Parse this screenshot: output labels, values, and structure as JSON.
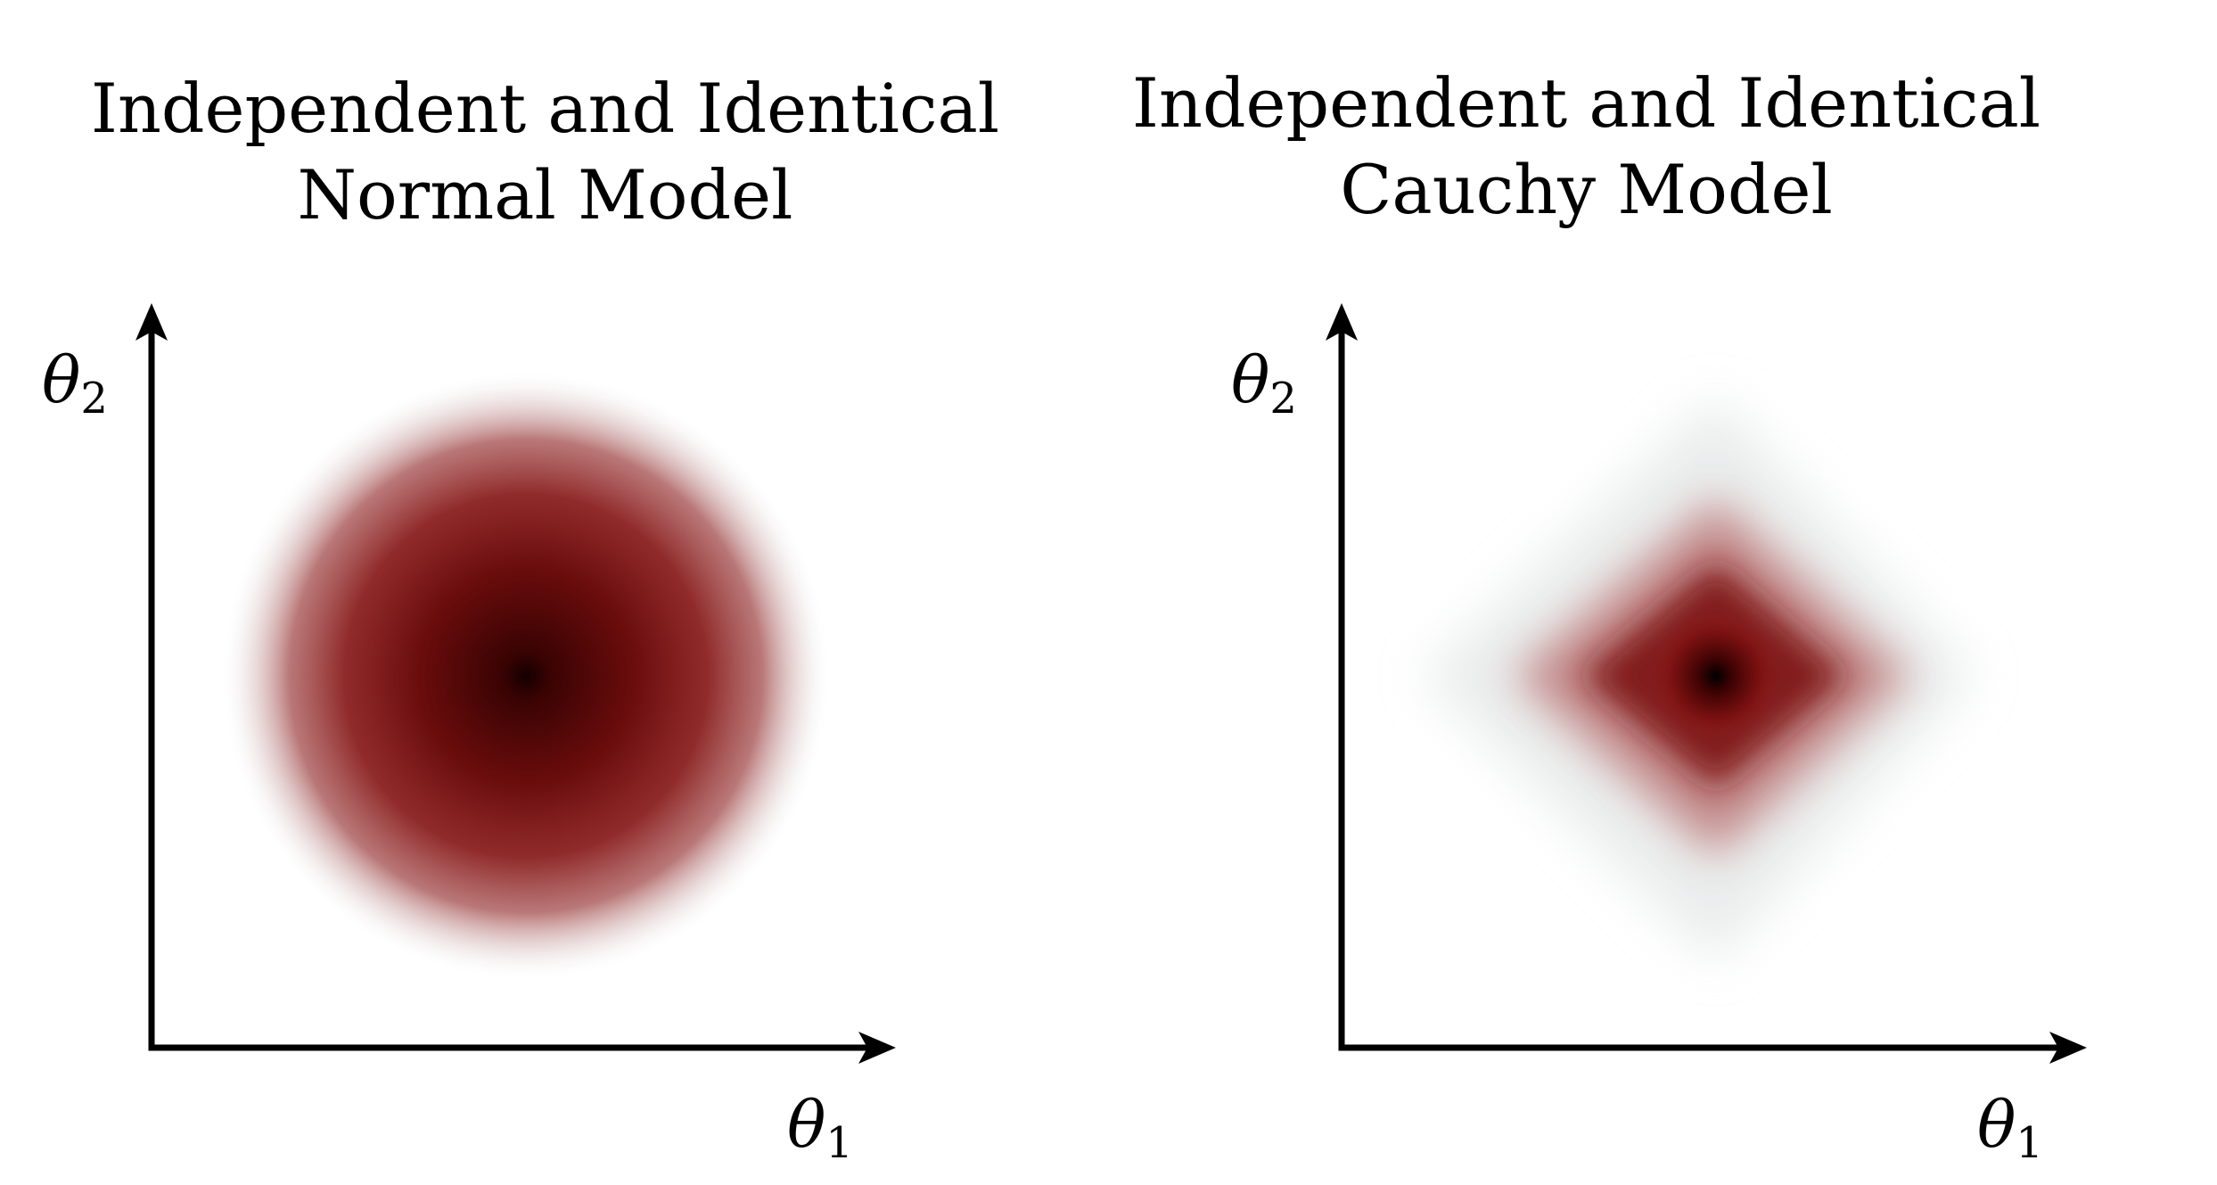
{
  "panels": [
    {
      "id": "normal",
      "title_line1": "Independent and Identical",
      "title_line2": "Normal Model",
      "distribution": "normal",
      "x_axis_symbol": "θ",
      "x_axis_subscript": "1",
      "y_axis_symbol": "θ",
      "y_axis_subscript": "2"
    },
    {
      "id": "cauchy",
      "title_line1": "Independent and Identical",
      "title_line2": "Cauchy Model",
      "distribution": "cauchy",
      "x_axis_symbol": "θ",
      "x_axis_subscript": "1",
      "y_axis_symbol": "θ",
      "y_axis_subscript": "2"
    }
  ],
  "colors": {
    "background": "#ffffff",
    "density_dark": "#2a0000",
    "density_mid": "#8b1a1a",
    "density_light": "#f2f2f2",
    "axis": "#000000"
  }
}
